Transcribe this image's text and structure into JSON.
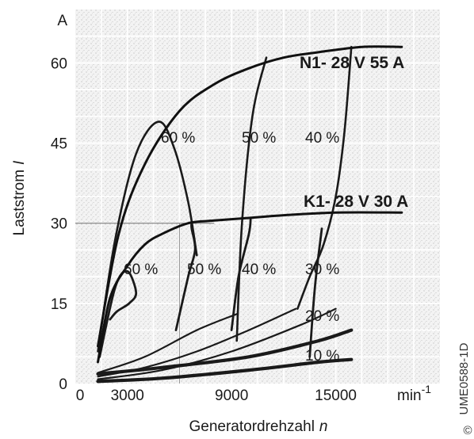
{
  "chart_data": {
    "type": "line",
    "title": "",
    "xlabel": "Generatordrehzahl",
    "xlabel_var": "n",
    "ylabel": "Laststrom",
    "ylabel_var": "I",
    "x_unit": "min",
    "x_unit_exp": "-1",
    "y_unit": "A",
    "xlim": [
      0,
      21000
    ],
    "ylim": [
      0,
      70
    ],
    "x_ticks": [
      "0",
      "3000",
      "9000",
      "15000"
    ],
    "x_tick_values": [
      0,
      3000,
      9000,
      15000
    ],
    "y_ticks": [
      "0",
      "15",
      "30",
      "45",
      "60"
    ],
    "y_tick_values": [
      0,
      15,
      30,
      45,
      60
    ],
    "grid": true,
    "series": [
      {
        "name": "N1- 28 V 55 A",
        "x": [
          1300,
          2500,
          4000,
          6000,
          8000,
          10000,
          12000,
          14000,
          16500,
          18800
        ],
        "y": [
          7,
          28,
          41,
          51,
          56,
          59,
          61,
          62,
          63,
          63
        ]
      },
      {
        "name": "K1- 28 V 30 A",
        "x": [
          1300,
          2000,
          3000,
          4000,
          5000,
          6500,
          8000,
          10000,
          12000,
          15000,
          18800
        ],
        "y": [
          4,
          16,
          22,
          26,
          28,
          30,
          30.5,
          31,
          31.5,
          32,
          32
        ]
      }
    ],
    "efficiency_curves": {
      "N1": [
        {
          "label": "60 %",
          "x": [
            1300,
            2300,
            3500,
            4800,
            5700,
            6500,
            7000
          ],
          "y": [
            6,
            27,
            43,
            49,
            44,
            34,
            24
          ]
        },
        {
          "label": "50 %",
          "x": [
            9300,
            9600,
            10200,
            11000
          ],
          "y": [
            8,
            30,
            50,
            61
          ]
        },
        {
          "label": "40 %",
          "x": [
            12800,
            13500,
            14300,
            15000,
            15500,
            15900
          ],
          "y": [
            14,
            20,
            26,
            35,
            47,
            63
          ]
        }
      ],
      "K1": [
        {
          "label": "60 %",
          "x": [
            1400,
            2300,
            3000,
            3500,
            3100,
            2400,
            2000
          ],
          "y": [
            5,
            18,
            21,
            17,
            15,
            13.5,
            12
          ]
        },
        {
          "label": "50 %",
          "x": [
            5800,
            6500,
            6900,
            6700,
            6700
          ],
          "y": [
            10,
            20,
            25,
            29,
            30
          ]
        },
        {
          "label": "40 %",
          "x": [
            9000,
            9400,
            10000,
            10100
          ],
          "y": [
            10,
            20,
            28,
            31
          ]
        },
        {
          "label": "30 %",
          "x": [
            13500,
            13800,
            14200
          ],
          "y": [
            5,
            18,
            29
          ]
        },
        {
          "label": "20 %",
          "x": [
            1300,
            5000,
            10000,
            14000,
            15900
          ],
          "y": [
            1.8,
            3,
            5,
            8,
            10
          ]
        },
        {
          "label": "10 %",
          "x": [
            1300,
            5000,
            10000,
            14000,
            15900
          ],
          "y": [
            0.4,
            1,
            2.5,
            4,
            4.5
          ]
        }
      ],
      "unlabeled": [
        {
          "x": [
            1300,
            4000,
            7000,
            9300
          ],
          "y": [
            2,
            5,
            10,
            13
          ]
        },
        {
          "x": [
            1300,
            4000,
            7000,
            10000,
            12700
          ],
          "y": [
            1.3,
            3,
            6,
            10,
            14
          ]
        },
        {
          "x": [
            1300,
            5000,
            9000,
            13000,
            15000
          ],
          "y": [
            0.8,
            2.5,
            6,
            11,
            14
          ]
        }
      ]
    },
    "annotations": [
      "60 %",
      "50 %",
      "40 %",
      "60 %",
      "50 %",
      "40 %",
      "30 %",
      "20 %",
      "10 %"
    ],
    "side_code": "UME0588-1D",
    "side_symbol": "©"
  }
}
